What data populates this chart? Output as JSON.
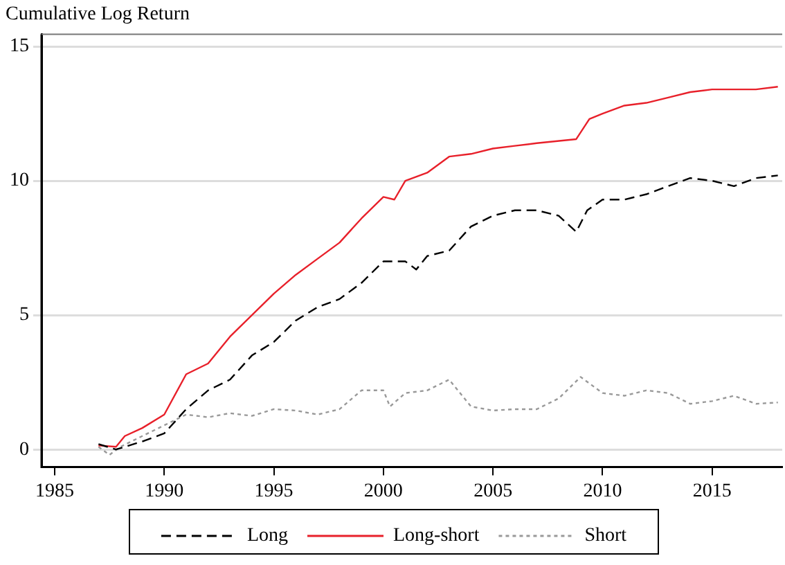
{
  "chart_data": {
    "type": "line",
    "title": "Cumulative Log Return",
    "xlim": [
      1984.4,
      2018.2
    ],
    "xticks": [
      1985,
      1990,
      1995,
      2000,
      2005,
      2010,
      2015
    ],
    "ylim": [
      -0.65,
      15.45
    ],
    "yticks": [
      0,
      5,
      10,
      15
    ],
    "grid": "y",
    "legend": "bottom",
    "marker": "none",
    "series": [
      {
        "name": "Long",
        "color": "#000000",
        "line_style": "dashed",
        "x": [
          1987,
          1987.8,
          1989,
          1990,
          1991,
          1992,
          1993,
          1994,
          1995,
          1996,
          1997,
          1998,
          1999,
          2000,
          2001,
          2001.5,
          2002,
          2003,
          2004,
          2005,
          2006,
          2007,
          2008,
          2008.8,
          2009.3,
          2010,
          2011,
          2012,
          2013,
          2014,
          2015,
          2016,
          2017,
          2018
        ],
        "values": [
          0.2,
          0.0,
          0.3,
          0.6,
          1.5,
          2.2,
          2.6,
          3.5,
          4.0,
          4.8,
          5.3,
          5.6,
          6.2,
          7.0,
          7.0,
          6.7,
          7.2,
          7.4,
          8.3,
          8.7,
          8.9,
          8.9,
          8.7,
          8.1,
          8.9,
          9.3,
          9.3,
          9.5,
          9.8,
          10.1,
          10.0,
          9.8,
          10.1,
          10.2
        ]
      },
      {
        "name": "Long-short",
        "color": "#e8202a",
        "line_style": "solid",
        "x": [
          1987,
          1987.8,
          1988.2,
          1989,
          1990,
          1991,
          1992,
          1993,
          1994,
          1995,
          1996,
          1997,
          1998,
          1999,
          2000,
          2000.5,
          2001,
          2002,
          2003,
          2004,
          2005,
          2006,
          2007,
          2008.8,
          2009.4,
          2010,
          2011,
          2012,
          2013,
          2014,
          2015,
          2016,
          2017,
          2018
        ],
        "values": [
          0.15,
          0.1,
          0.5,
          0.8,
          1.3,
          2.8,
          3.2,
          4.2,
          5.0,
          5.8,
          6.5,
          7.1,
          7.7,
          8.6,
          9.4,
          9.3,
          10.0,
          10.3,
          10.9,
          11.0,
          11.2,
          11.3,
          11.4,
          11.55,
          12.3,
          12.5,
          12.8,
          12.9,
          13.1,
          13.3,
          13.4,
          13.4,
          13.4,
          13.5
        ]
      },
      {
        "name": "Short",
        "color": "#999999",
        "line_style": "dotted",
        "x": [
          1987,
          1987.5,
          1988,
          1989,
          1990,
          1991,
          1992,
          1993,
          1994,
          1995,
          1996,
          1997,
          1998,
          1999,
          2000,
          2000.3,
          2001,
          2002,
          2003,
          2004,
          2005,
          2006,
          2007,
          2008,
          2009,
          2010,
          2011,
          2012,
          2013,
          2014,
          2015,
          2016,
          2017,
          2018
        ],
        "values": [
          0.1,
          -0.2,
          0.1,
          0.5,
          0.9,
          1.3,
          1.2,
          1.35,
          1.25,
          1.5,
          1.45,
          1.3,
          1.5,
          2.2,
          2.2,
          1.6,
          2.1,
          2.2,
          2.6,
          1.6,
          1.45,
          1.5,
          1.5,
          1.9,
          2.7,
          2.1,
          2.0,
          2.2,
          2.1,
          1.7,
          1.8,
          2.0,
          1.7,
          1.75
        ]
      }
    ]
  }
}
